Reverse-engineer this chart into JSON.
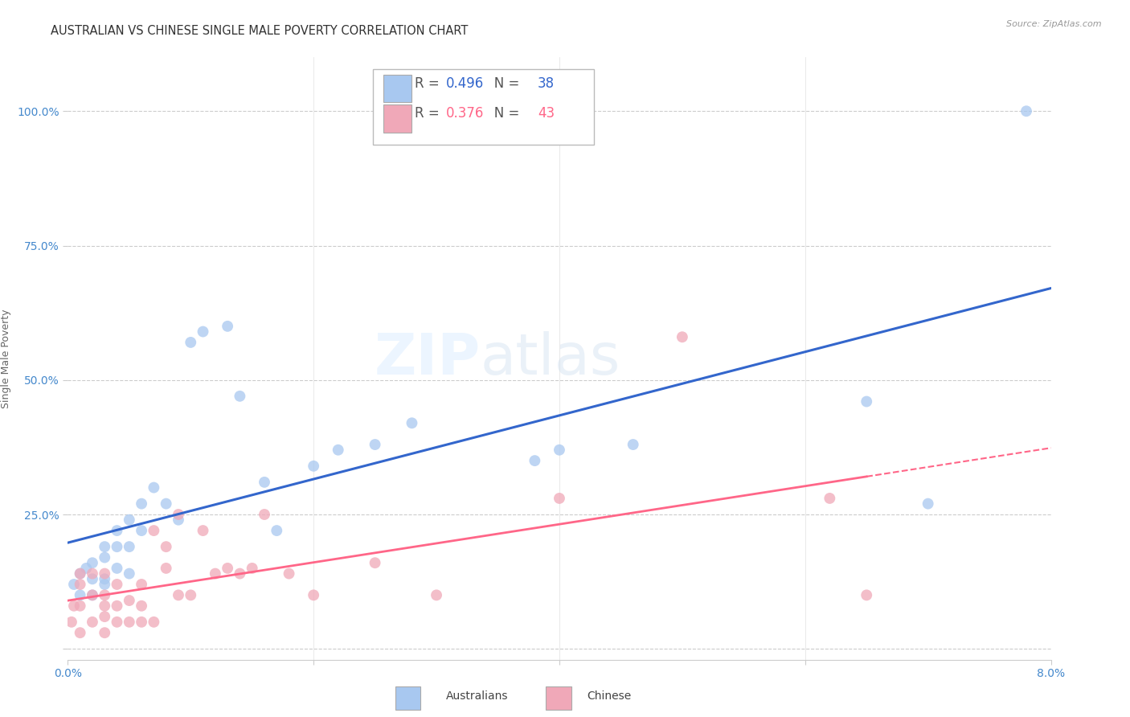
{
  "title": "AUSTRALIAN VS CHINESE SINGLE MALE POVERTY CORRELATION CHART",
  "source": "Source: ZipAtlas.com",
  "ylabel": "Single Male Poverty",
  "watermark": "ZIPatlas",
  "background_color": "#ffffff",
  "grid_color": "#cccccc",
  "xlim": [
    0.0,
    0.08
  ],
  "ylim": [
    -0.02,
    1.1
  ],
  "yticks": [
    0.0,
    0.25,
    0.5,
    0.75,
    1.0
  ],
  "ytick_labels": [
    "",
    "25.0%",
    "50.0%",
    "75.0%",
    "100.0%"
  ],
  "xticks": [
    0.0,
    0.02,
    0.04,
    0.06,
    0.08
  ],
  "xtick_labels": [
    "0.0%",
    "",
    "",
    "",
    "8.0%"
  ],
  "australian_R": 0.496,
  "australian_N": 38,
  "chinese_R": 0.376,
  "chinese_N": 43,
  "australian_color": "#a8c8f0",
  "chinese_color": "#f0a8b8",
  "line_australian_color": "#3366CC",
  "line_chinese_color": "#FF6688",
  "tick_color": "#4488CC",
  "aus_x": [
    0.0005,
    0.001,
    0.001,
    0.0015,
    0.002,
    0.002,
    0.002,
    0.003,
    0.003,
    0.003,
    0.003,
    0.004,
    0.004,
    0.004,
    0.005,
    0.005,
    0.005,
    0.006,
    0.006,
    0.007,
    0.008,
    0.009,
    0.01,
    0.011,
    0.013,
    0.014,
    0.016,
    0.017,
    0.02,
    0.022,
    0.025,
    0.028,
    0.038,
    0.04,
    0.046,
    0.065,
    0.07,
    0.078
  ],
  "aus_y": [
    0.12,
    0.1,
    0.14,
    0.15,
    0.1,
    0.13,
    0.16,
    0.12,
    0.13,
    0.17,
    0.19,
    0.15,
    0.19,
    0.22,
    0.14,
    0.19,
    0.24,
    0.22,
    0.27,
    0.3,
    0.27,
    0.24,
    0.57,
    0.59,
    0.6,
    0.47,
    0.31,
    0.22,
    0.34,
    0.37,
    0.38,
    0.42,
    0.35,
    0.37,
    0.38,
    0.46,
    0.27,
    1.0
  ],
  "chi_x": [
    0.0003,
    0.0005,
    0.001,
    0.001,
    0.001,
    0.001,
    0.002,
    0.002,
    0.002,
    0.003,
    0.003,
    0.003,
    0.003,
    0.003,
    0.004,
    0.004,
    0.004,
    0.005,
    0.005,
    0.006,
    0.006,
    0.006,
    0.007,
    0.007,
    0.008,
    0.008,
    0.009,
    0.009,
    0.01,
    0.011,
    0.012,
    0.013,
    0.014,
    0.015,
    0.016,
    0.018,
    0.02,
    0.025,
    0.03,
    0.04,
    0.05,
    0.062,
    0.065
  ],
  "chi_y": [
    0.05,
    0.08,
    0.03,
    0.08,
    0.12,
    0.14,
    0.05,
    0.1,
    0.14,
    0.03,
    0.06,
    0.08,
    0.1,
    0.14,
    0.05,
    0.08,
    0.12,
    0.05,
    0.09,
    0.05,
    0.08,
    0.12,
    0.05,
    0.22,
    0.15,
    0.19,
    0.1,
    0.25,
    0.1,
    0.22,
    0.14,
    0.15,
    0.14,
    0.15,
    0.25,
    0.14,
    0.1,
    0.16,
    0.1,
    0.28,
    0.58,
    0.28,
    0.1
  ],
  "marker_size": 100,
  "marker_alpha": 0.75
}
